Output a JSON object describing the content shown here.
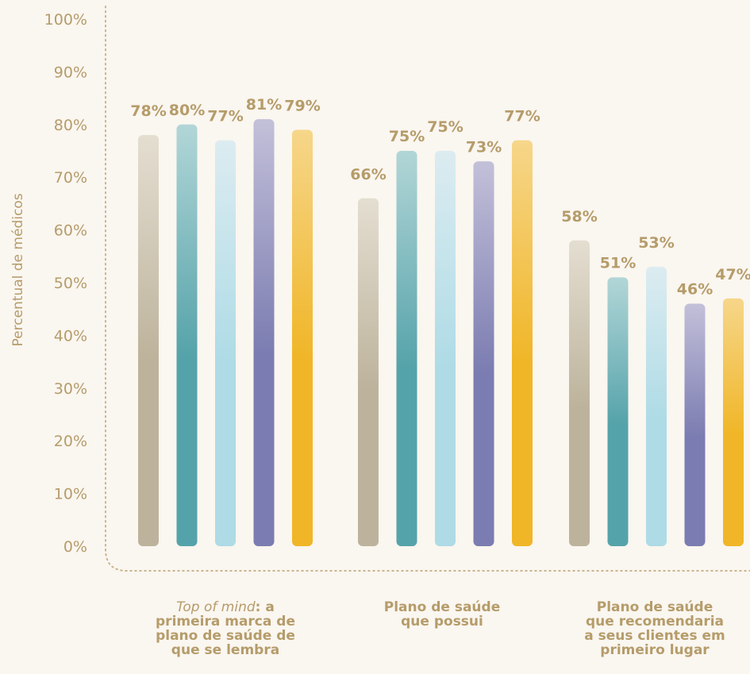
{
  "chart_data": {
    "type": "bar",
    "ylabel": "Percentual de médicos",
    "ylim": [
      0,
      100
    ],
    "yticks": [
      "0%",
      "10%",
      "20%",
      "30%",
      "40%",
      "50%",
      "60%",
      "70%",
      "80%",
      "90%",
      "100%"
    ],
    "categories": [
      "Top of mind: a primeira marca de plano de saúde de que se lembra",
      "Plano de saúde que possui",
      "Plano de saúde que recomendaria a seus clientes em primeiro lugar"
    ],
    "category_lines": [
      [
        "Top of mind: a",
        "primeira marca de",
        "plano de saúde de",
        "que se lembra"
      ],
      [
        "Plano de saúde",
        "que possui"
      ],
      [
        "Plano de saúde",
        "que recomendaria",
        "a seus clientes em",
        "primeiro lugar"
      ]
    ],
    "category_italic_prefix": [
      "Top of mind",
      "",
      ""
    ],
    "series": [
      {
        "color_top": "#e4ded1",
        "color_bottom": "#bdb39c",
        "values": [
          78,
          66,
          58
        ]
      },
      {
        "color_top": "#b2d6d7",
        "color_bottom": "#55a3aa",
        "values": [
          80,
          75,
          51
        ]
      },
      {
        "color_top": "#dcecf1",
        "color_bottom": "#aedbe6",
        "values": [
          77,
          75,
          53
        ]
      },
      {
        "color_top": "#c3c0d9",
        "color_bottom": "#7b7cb1",
        "values": [
          81,
          73,
          46
        ]
      },
      {
        "color_top": "#f6d68a",
        "color_bottom": "#f0b627",
        "values": [
          79,
          77,
          47
        ]
      }
    ],
    "data_labels": [
      [
        "78%",
        "80%",
        "77%",
        "81%",
        "79%"
      ],
      [
        "66%",
        "75%",
        "75%",
        "73%",
        "77%"
      ],
      [
        "58%",
        "51%",
        "53%",
        "46%",
        "47%"
      ]
    ],
    "colors": {
      "text": "#b59c6a",
      "background": "#faf6f0",
      "axis": "#c9b48a"
    },
    "grid": false,
    "legend": "none"
  }
}
